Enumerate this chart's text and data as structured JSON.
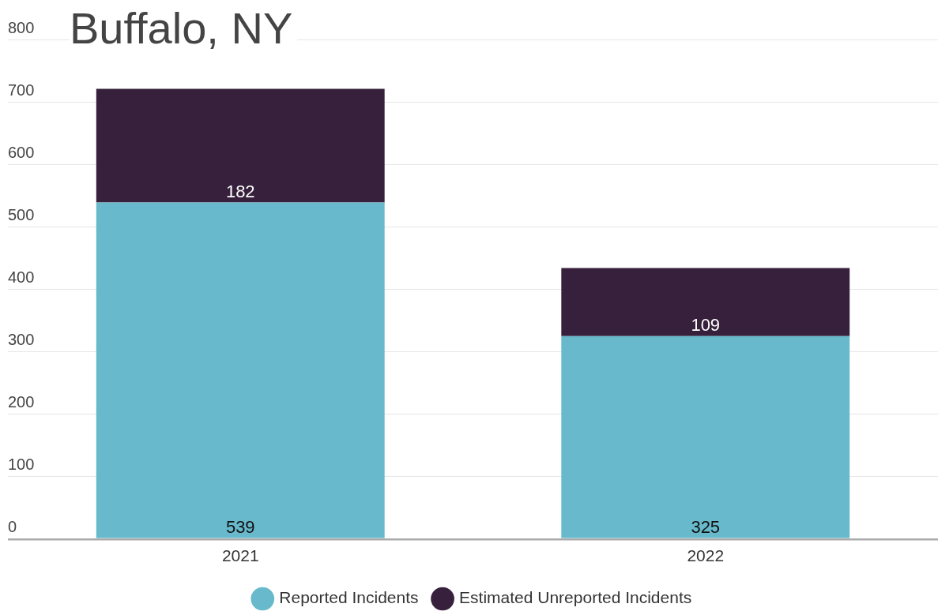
{
  "chart_data": {
    "type": "bar",
    "title": "Buffalo, NY",
    "categories": [
      "2021",
      "2022"
    ],
    "stacked": true,
    "series": [
      {
        "name": "Reported Incidents",
        "color": "#67b9cb",
        "values": [
          539,
          325
        ]
      },
      {
        "name": "Estimated Unreported Incidents",
        "color": "#37203b",
        "values": [
          182,
          109
        ]
      }
    ],
    "ylim": [
      0,
      800
    ],
    "yticks": [
      0,
      100,
      200,
      300,
      400,
      500,
      600,
      700,
      800
    ],
    "grid": "y",
    "legend": "bottom",
    "data_labels": true
  }
}
